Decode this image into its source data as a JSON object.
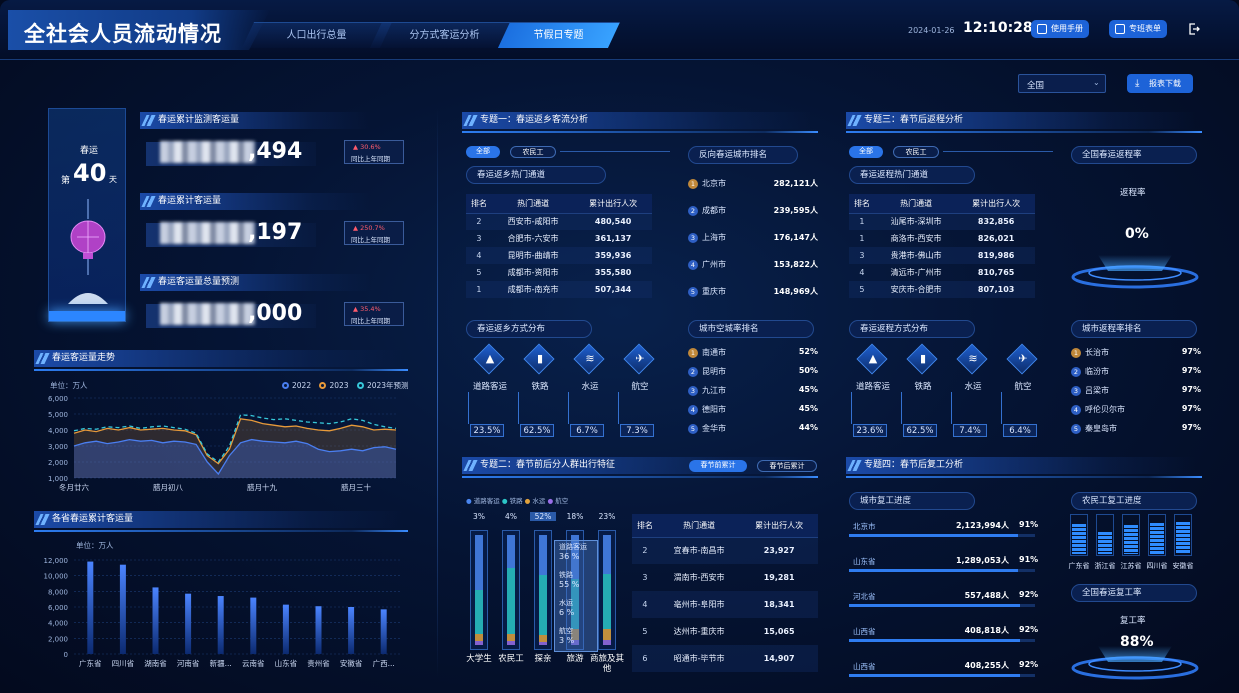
{
  "header": {
    "title": "全社会人员流动情况",
    "tabs": [
      {
        "label": "人口出行总量"
      },
      {
        "label": "分方式客运分析"
      },
      {
        "label": "节假日专题"
      }
    ],
    "date": "2024-01-26",
    "time": "12:10:28",
    "manual_label": "使用手册",
    "report_label": "专班表单",
    "logout_icon": "logout-icon"
  },
  "toolbar": {
    "region": "全国",
    "download_label": "报表下载"
  },
  "left": {
    "badge": {
      "label": "春运",
      "prefix": "第",
      "day": "40",
      "suffix": "天"
    },
    "stats": [
      {
        "title": "春运累计监测客运量",
        "value": ",494",
        "change": "30.6%",
        "compare": "同比上年同期"
      },
      {
        "title": "春运累计客运量",
        "value": ",197",
        "change": "250.7%",
        "compare": "同比上年同期"
      },
      {
        "title": "春运客运量总量预测",
        "value": ",000",
        "change": "35.4%",
        "compare": "同比上年同期"
      }
    ],
    "trend": {
      "title": "春运客运量走势",
      "unit": "单位：万人",
      "legend": [
        "2022",
        "2023",
        "2023年预测"
      ]
    },
    "province": {
      "title": "各省春运累计客运量",
      "unit": "单位：万人"
    }
  },
  "chart_data": [
    {
      "type": "area",
      "title": "春运客运量走势",
      "ylabel": "单位：万人",
      "ylim": [
        1000,
        6000
      ],
      "yticks": [
        "6,000",
        "5,000",
        "4,000",
        "3,000",
        "2,000",
        "1,000"
      ],
      "xticks": [
        "冬月廿六",
        "腊月初八",
        "腊月十九",
        "腊月三十"
      ],
      "series": [
        {
          "name": "2022",
          "values": [
            3000,
            3200,
            3300,
            3150,
            3250,
            3400,
            3300,
            3350,
            3200,
            3300,
            3250,
            3100,
            2000,
            1250,
            2400,
            3200,
            3400,
            3300,
            3250,
            3200,
            3300,
            3150,
            2800,
            2650,
            2700,
            2800,
            2700,
            2900,
            2950,
            2800
          ]
        },
        {
          "name": "2023",
          "values": [
            3800,
            4000,
            3900,
            4100,
            4000,
            4150,
            4000,
            4050,
            4100,
            4000,
            3950,
            3700,
            2400,
            1900,
            2800,
            4700,
            4600,
            4400,
            4300,
            4200,
            4250,
            4100,
            4000,
            3950,
            4100,
            4300,
            4200,
            4000,
            4050,
            4000
          ]
        },
        {
          "name": "2023年预测",
          "values": [
            3950,
            4100,
            4050,
            4200,
            4150,
            4250,
            4100,
            4200,
            4250,
            4150,
            4050,
            3800,
            2500,
            2000,
            3000,
            4950,
            4900,
            4750,
            4650,
            4700,
            4600,
            4500,
            4450,
            4400,
            4500,
            4700,
            4600,
            4350,
            4200,
            4100
          ]
        }
      ]
    },
    {
      "type": "bar",
      "title": "各省春运累计客运量",
      "ylabel": "单位：万人",
      "ylim": [
        0,
        12000
      ],
      "yticks": [
        "12,000",
        "10,000",
        "8,000",
        "6,000",
        "4,000",
        "2,000",
        "0"
      ],
      "categories": [
        "广东省",
        "四川省",
        "湖南省",
        "河南省",
        "新疆...",
        "云南省",
        "山东省",
        "贵州省",
        "安徽省",
        "广西..."
      ],
      "values": [
        11800,
        11400,
        8500,
        7700,
        7400,
        7200,
        6300,
        6100,
        6000,
        5700
      ]
    }
  ],
  "topic1": {
    "title": "专题一：春运返乡客流分析",
    "pill_all": "全部",
    "pill_farmer": "农民工",
    "hot_title": "春运返乡热门通道",
    "cols": [
      "排名",
      "热门通道",
      "累计出行人次"
    ],
    "rows": [
      [
        "2",
        "西安市-咸阳市",
        "480,540"
      ],
      [
        "3",
        "合肥市-六安市",
        "361,137"
      ],
      [
        "4",
        "昆明市-曲靖市",
        "359,936"
      ],
      [
        "5",
        "成都市-资阳市",
        "355,580"
      ],
      [
        "1",
        "成都市-南充市",
        "507,344"
      ]
    ],
    "rev_title": "反向春运城市排名",
    "rev": [
      [
        "1",
        "北京市",
        "282,121人"
      ],
      [
        "2",
        "成都市",
        "239,595人"
      ],
      [
        "3",
        "上海市",
        "176,147人"
      ],
      [
        "4",
        "广州市",
        "153,822人"
      ],
      [
        "5",
        "重庆市",
        "148,969人"
      ]
    ],
    "mode_title": "春运返乡方式分布",
    "modes": [
      {
        "label": "道路客运",
        "pct": "23.5%",
        "icon": "road-icon"
      },
      {
        "label": "铁路",
        "pct": "62.5%",
        "icon": "train-icon"
      },
      {
        "label": "水运",
        "pct": "6.7%",
        "icon": "ship-icon"
      },
      {
        "label": "航空",
        "pct": "7.3%",
        "icon": "plane-icon"
      }
    ],
    "empty_title": "城市空城率排名",
    "empty": [
      [
        "1",
        "南通市",
        "52%"
      ],
      [
        "2",
        "昆明市",
        "50%"
      ],
      [
        "3",
        "九江市",
        "45%"
      ],
      [
        "4",
        "德阳市",
        "45%"
      ],
      [
        "5",
        "金华市",
        "44%"
      ]
    ]
  },
  "topic2": {
    "title": "专题二：春节前后分人群出行特征",
    "pill_before": "春节前累计",
    "pill_after": "春节后累计",
    "legend": [
      "道路客运",
      "铁路",
      "水运",
      "航空"
    ],
    "groups": [
      {
        "label": "大学生",
        "pct": "3%"
      },
      {
        "label": "农民工",
        "pct": "4%"
      },
      {
        "label": "探亲",
        "pct": "52%"
      },
      {
        "label": "旅游",
        "pct": "18%"
      },
      {
        "label": "商旅及其他",
        "pct": "23%"
      }
    ],
    "tooltip": [
      {
        "name": "道路客运",
        "pct": "36 %"
      },
      {
        "name": "铁路",
        "pct": "55 %"
      },
      {
        "name": "水运",
        "pct": "6 %"
      },
      {
        "name": "航空",
        "pct": "3 %"
      }
    ],
    "cols": [
      "排名",
      "热门通道",
      "累计出行人次"
    ],
    "rows": [
      [
        "2",
        "宜春市-南昌市",
        "23,927"
      ],
      [
        "3",
        "渭南市-西安市",
        "19,281"
      ],
      [
        "4",
        "亳州市-阜阳市",
        "18,341"
      ],
      [
        "5",
        "达州市-重庆市",
        "15,065"
      ],
      [
        "6",
        "昭通市-毕节市",
        "14,907"
      ]
    ]
  },
  "topic3": {
    "title": "专题三：春节后返程分析",
    "pill_all": "全部",
    "pill_farmer": "农民工",
    "hot_title": "春运返程热门通道",
    "cols": [
      "排名",
      "热门通道",
      "累计出行人次"
    ],
    "rows": [
      [
        "1",
        "汕尾市-深圳市",
        "832,856"
      ],
      [
        "1",
        "商洛市-西安市",
        "826,021"
      ],
      [
        "3",
        "贵港市-佛山市",
        "819,986"
      ],
      [
        "4",
        "清远市-广州市",
        "810,765"
      ],
      [
        "5",
        "安庆市-合肥市",
        "807,103"
      ]
    ],
    "rate_title": "全国春运返程率",
    "rate_label": "返程率",
    "rate_value": "0%",
    "mode_title": "春运返程方式分布",
    "modes": [
      {
        "label": "道路客运",
        "pct": "23.6%"
      },
      {
        "label": "铁路",
        "pct": "62.5%"
      },
      {
        "label": "水运",
        "pct": "7.4%"
      },
      {
        "label": "航空",
        "pct": "6.4%"
      }
    ],
    "city_title": "城市返程率排名",
    "city": [
      [
        "1",
        "长治市",
        "97%"
      ],
      [
        "2",
        "临汾市",
        "97%"
      ],
      [
        "3",
        "吕梁市",
        "97%"
      ],
      [
        "4",
        "呼伦贝尔市",
        "97%"
      ],
      [
        "5",
        "秦皇岛市",
        "97%"
      ]
    ]
  },
  "topic4": {
    "title": "专题四：春节后复工分析",
    "progress_title": "城市复工进度",
    "cities": [
      {
        "name": "北京市",
        "count": "2,123,994人",
        "pct": "91%",
        "fill": 0.91
      },
      {
        "name": "山东省",
        "count": "1,289,053人",
        "pct": "91%",
        "fill": 0.91
      },
      {
        "name": "河北省",
        "count": "557,488人",
        "pct": "92%",
        "fill": 0.92
      },
      {
        "name": "山西省",
        "count": "408,818人",
        "pct": "92%",
        "fill": 0.92
      },
      {
        "name": "山西省",
        "count": "408,255人",
        "pct": "92%",
        "fill": 0.92
      }
    ],
    "farmer_title": "农民工复工进度",
    "farmer": [
      {
        "name": "广东省",
        "fill": 0.75
      },
      {
        "name": "浙江省",
        "fill": 0.55
      },
      {
        "name": "江苏省",
        "fill": 0.72
      },
      {
        "name": "四川省",
        "fill": 0.78
      },
      {
        "name": "安徽省",
        "fill": 0.8
      }
    ],
    "rate_title": "全国春运复工率",
    "rate_label": "复工率",
    "rate_value": "88%"
  }
}
